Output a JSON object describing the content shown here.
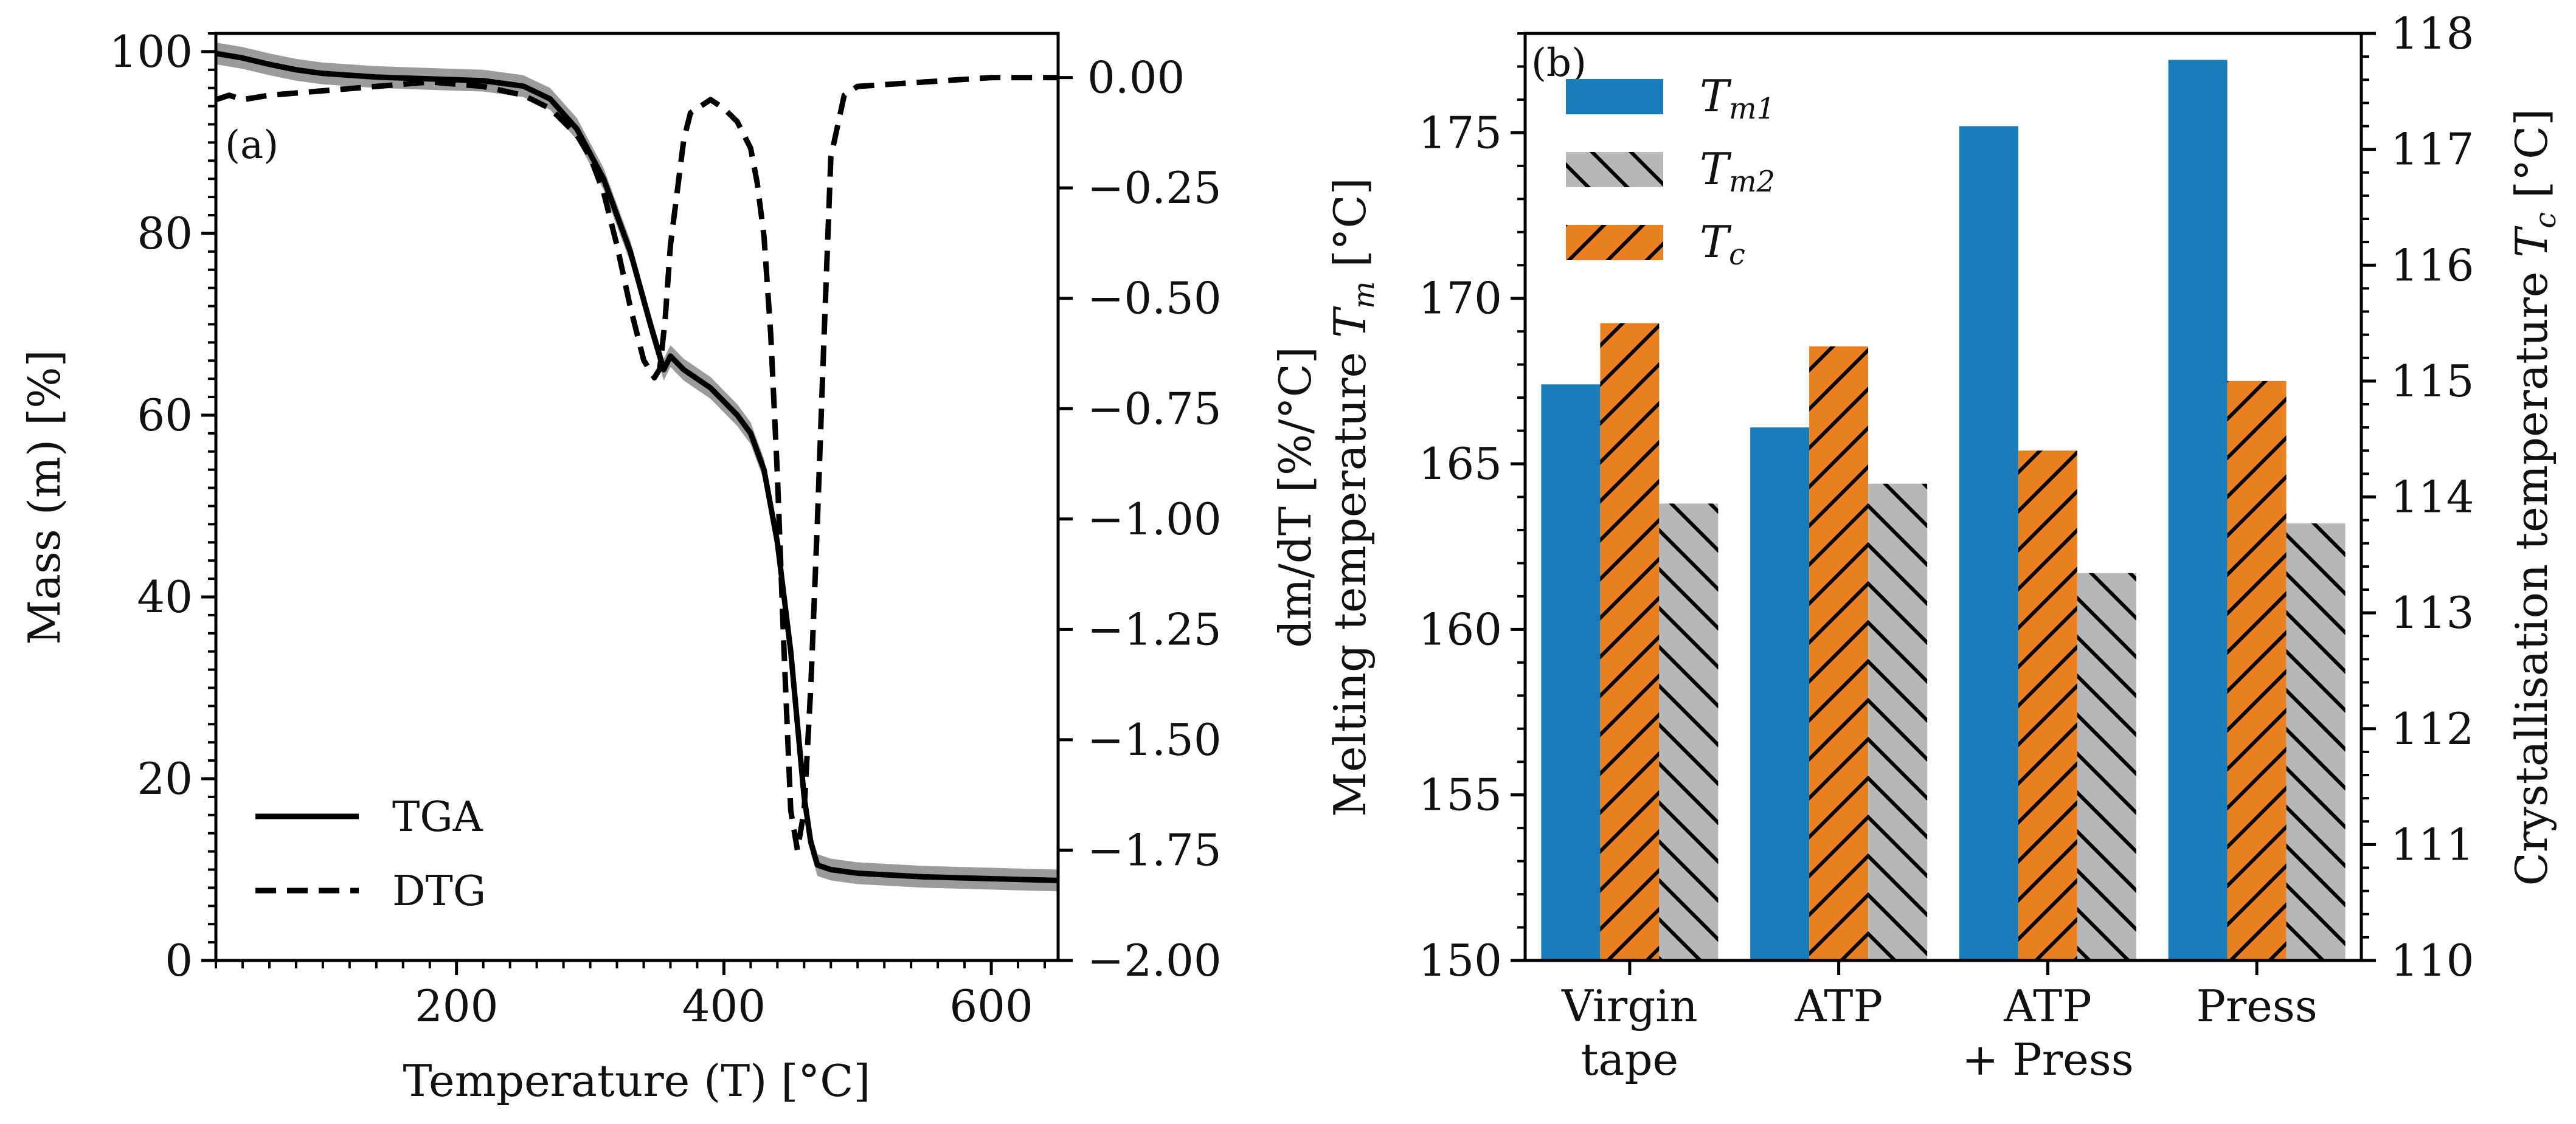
{
  "colors": {
    "tm1": "#1a7dbb",
    "tm2": "#b7b7b7",
    "tc": "#e98121",
    "line": "#000000",
    "band": "#8a8a8a"
  },
  "chart_data": [
    {
      "panel": "(a)",
      "type": "line",
      "xlabel": "Temperature (T) [°C]",
      "ylabel": "Mass (m) [%]",
      "y2label": "dm/dT [%/°C]",
      "xlim": [
        20,
        650
      ],
      "ylim": [
        0,
        102
      ],
      "y2lim": [
        -2.0,
        0.1
      ],
      "xticks": [
        "200",
        "400",
        "600"
      ],
      "yticks": [
        "0",
        "20",
        "40",
        "60",
        "80",
        "100"
      ],
      "y2ticks": [
        "0.00",
        "−0.25",
        "−0.50",
        "−0.75",
        "−1.00",
        "−1.25",
        "−1.50",
        "−1.75",
        "−2.00"
      ],
      "legend": [
        "TGA",
        "DTG"
      ],
      "series": [
        {
          "name": "TGA",
          "style": "solid",
          "axis": "left",
          "band": 1.2,
          "x": [
            20,
            40,
            60,
            80,
            100,
            140,
            180,
            220,
            250,
            270,
            290,
            310,
            330,
            345,
            355,
            360,
            370,
            380,
            390,
            400,
            410,
            420,
            430,
            440,
            450,
            455,
            460,
            465,
            470,
            480,
            500,
            550,
            600,
            650
          ],
          "y": [
            99.8,
            99.3,
            98.6,
            98.0,
            97.6,
            97.2,
            97.0,
            96.8,
            96.2,
            94.8,
            91.5,
            86.0,
            78.0,
            70.0,
            65.0,
            66.5,
            65.0,
            64.0,
            63.0,
            61.5,
            60.0,
            58.0,
            54.0,
            46.0,
            34.0,
            26.0,
            18.0,
            13.0,
            10.5,
            10.0,
            9.6,
            9.2,
            9.0,
            8.8
          ]
        },
        {
          "name": "DTG",
          "style": "dashed",
          "axis": "right",
          "x": [
            20,
            30,
            40,
            60,
            80,
            100,
            140,
            180,
            220,
            250,
            270,
            290,
            300,
            310,
            320,
            330,
            340,
            348,
            352,
            356,
            360,
            365,
            370,
            375,
            380,
            390,
            400,
            410,
            420,
            425,
            430,
            435,
            440,
            445,
            450,
            455,
            460,
            465,
            470,
            475,
            480,
            490,
            500,
            550,
            600,
            650
          ],
          "y": [
            -0.05,
            -0.04,
            -0.05,
            -0.04,
            -0.035,
            -0.03,
            -0.02,
            -0.01,
            -0.02,
            -0.04,
            -0.07,
            -0.13,
            -0.18,
            -0.26,
            -0.38,
            -0.52,
            -0.64,
            -0.68,
            -0.66,
            -0.55,
            -0.38,
            -0.26,
            -0.14,
            -0.08,
            -0.07,
            -0.05,
            -0.07,
            -0.1,
            -0.16,
            -0.24,
            -0.36,
            -0.58,
            -0.9,
            -1.3,
            -1.66,
            -1.75,
            -1.66,
            -1.38,
            -1.0,
            -0.58,
            -0.18,
            -0.04,
            -0.02,
            -0.01,
            -0.0,
            -0.0
          ]
        }
      ]
    },
    {
      "panel": "(b)",
      "type": "bar",
      "categories": [
        [
          "Virgin",
          "tape"
        ],
        [
          "ATP"
        ],
        [
          "ATP",
          "+ Press"
        ],
        [
          "Press"
        ]
      ],
      "ylabel": "Melting temperature T_m [°C]",
      "y2label": "Crystallisation temperature T_c [°C]",
      "ylim": [
        150,
        178
      ],
      "y2lim": [
        110,
        118
      ],
      "yticks": [
        "150",
        "155",
        "160",
        "165",
        "170",
        "175"
      ],
      "y2ticks": [
        "110",
        "111",
        "112",
        "113",
        "114",
        "115",
        "116",
        "117",
        "118"
      ],
      "legend_position": "upper-left",
      "series": [
        {
          "name": "T",
          "sub": "m1",
          "axis": "left",
          "hatch": "none",
          "values": [
            167.4,
            166.1,
            175.2,
            177.2
          ]
        },
        {
          "name": "T",
          "sub": "c",
          "axis": "right",
          "hatch": "forward",
          "values": [
            115.5,
            115.3,
            114.4,
            115.0
          ]
        },
        {
          "name": "T",
          "sub": "m2",
          "axis": "left",
          "hatch": "back",
          "values": [
            163.8,
            164.4,
            161.7,
            163.2
          ]
        }
      ]
    }
  ]
}
